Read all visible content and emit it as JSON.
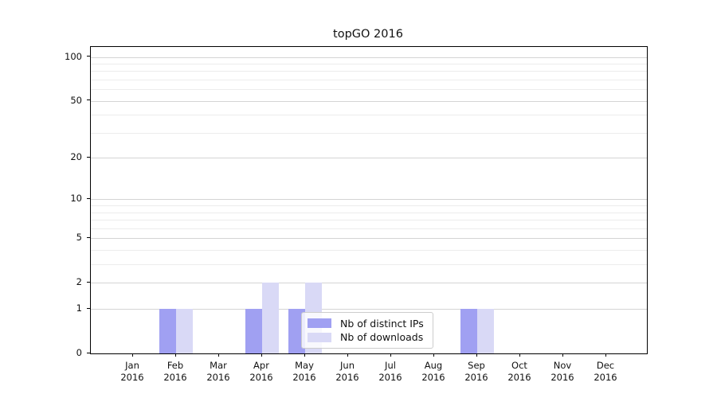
{
  "figure": {
    "background": "#ffffff",
    "axis_color": "#000000"
  },
  "chart_data": {
    "type": "bar",
    "title": "topGO 2016",
    "categories": [
      "Jan",
      "Feb",
      "Mar",
      "Apr",
      "May",
      "Jun",
      "Jul",
      "Aug",
      "Sep",
      "Oct",
      "Nov",
      "Dec"
    ],
    "category_year_label": "2016",
    "series": [
      {
        "name": "Nb of distinct IPs",
        "color": "#a0a0f2",
        "values": [
          0,
          1,
          0,
          1,
          1,
          0,
          0,
          0,
          1,
          0,
          0,
          0
        ]
      },
      {
        "name": "Nb of downloads",
        "color": "#d9d9f6",
        "values": [
          0,
          1,
          0,
          2,
          2,
          0,
          0,
          0,
          1,
          0,
          0,
          0
        ]
      }
    ],
    "xlabel": "",
    "ylabel": "",
    "y_axis": {
      "scale": "log1p",
      "major_ticks": [
        100,
        50,
        20,
        10,
        5,
        2,
        1,
        0
      ],
      "minor_ticks": [
        90,
        80,
        70,
        60,
        40,
        30,
        9,
        8,
        7,
        6,
        4,
        3
      ],
      "ylim": [
        0,
        117
      ]
    },
    "grid": {
      "orientation": "horizontal",
      "major_color": "#d4d4d4",
      "minor_color": "#ececec"
    },
    "legend": {
      "position": "lower center",
      "background": "rgba(255,255,255,0.8)",
      "border_color": "#cccccc"
    }
  }
}
